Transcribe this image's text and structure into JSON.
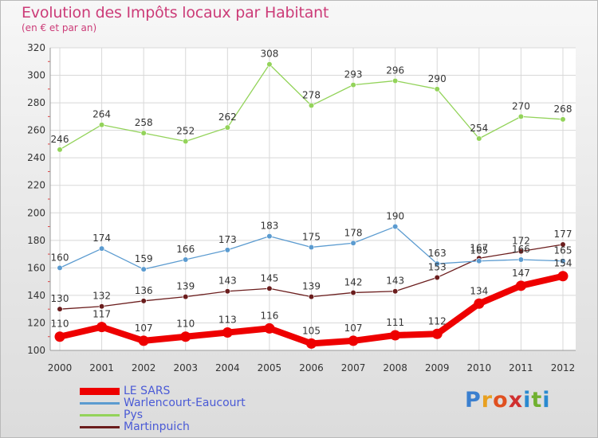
{
  "header": {
    "title": "Evolution des Impôts locaux par Habitant",
    "subtitle": "(en € et par an)"
  },
  "chart_data": {
    "type": "line",
    "x": [
      "2000",
      "2001",
      "2002",
      "2003",
      "2004",
      "2005",
      "2006",
      "2007",
      "2008",
      "2009",
      "2010",
      "2011",
      "2012"
    ],
    "ylim": [
      100,
      320
    ],
    "yticks": [
      "100",
      "120",
      "140",
      "160",
      "180",
      "200",
      "220",
      "240",
      "260",
      "280",
      "300",
      "320"
    ],
    "grid": true,
    "legend_position": "bottom-left",
    "series": [
      {
        "name": "LE SARS",
        "color": "#ee0000",
        "thick": true,
        "values": [
          110,
          117,
          107,
          110,
          113,
          116,
          105,
          107,
          111,
          112,
          134,
          147,
          154
        ]
      },
      {
        "name": "Warlencourt-Eaucourt",
        "color": "#5b9bd0",
        "thick": false,
        "values": [
          160,
          174,
          159,
          166,
          173,
          183,
          175,
          178,
          190,
          163,
          165,
          166,
          165
        ]
      },
      {
        "name": "Pys",
        "color": "#93d35a",
        "thick": false,
        "values": [
          246,
          264,
          258,
          252,
          262,
          308,
          278,
          293,
          296,
          290,
          254,
          270,
          268
        ]
      },
      {
        "name": "Martinpuich",
        "color": "#6b1d1d",
        "thick": false,
        "values": [
          130,
          132,
          136,
          139,
          143,
          145,
          139,
          142,
          143,
          153,
          167,
          172,
          177
        ]
      }
    ],
    "labels": [
      [
        "110",
        "117",
        "107",
        "110",
        "113",
        "116",
        "105",
        "107",
        "111",
        "112",
        "134",
        "147",
        "154"
      ],
      [
        "160",
        "174",
        "159",
        "166",
        "173",
        "183",
        "175",
        "178",
        "190",
        "163",
        "165",
        "166",
        "165"
      ],
      [
        "246",
        "264",
        "258",
        "252",
        "262",
        "308",
        "278",
        "293",
        "296",
        "290",
        "254",
        "270",
        "268"
      ],
      [
        "130",
        "132",
        "136",
        "139",
        "143",
        "145",
        "139",
        "142",
        "143",
        "153",
        "167",
        "172",
        "177"
      ]
    ]
  },
  "logo": {
    "letters": [
      "P",
      "r",
      "o",
      "x",
      "i",
      "t",
      "i"
    ],
    "colors": [
      "#3a7fcf",
      "#e8a020",
      "#e05020",
      "#d03030",
      "#2a8ad0",
      "#70b030",
      "#2a8ad0"
    ]
  }
}
